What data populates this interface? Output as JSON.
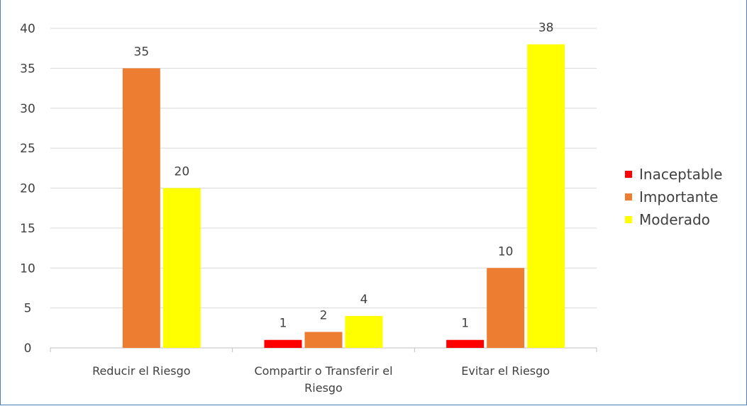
{
  "chart_data": {
    "type": "bar",
    "title": "",
    "categories": [
      "Reducir el Riesgo",
      "Compartir o Transferir el Riesgo",
      "Evitar el Riesgo"
    ],
    "category_label_lines": [
      [
        "Reducir el Riesgo"
      ],
      [
        "Compartir o Transferir el",
        "Riesgo"
      ],
      [
        "Evitar el Riesgo"
      ]
    ],
    "series": [
      {
        "name": "Inaceptable",
        "color": "#ff0000",
        "values": [
          null,
          1,
          1
        ]
      },
      {
        "name": "Importante",
        "color": "#ed7d31",
        "values": [
          35,
          2,
          10
        ]
      },
      {
        "name": "Moderado",
        "color": "#ffff00",
        "values": [
          20,
          4,
          38
        ]
      }
    ],
    "ylim": [
      0,
      40
    ],
    "yticks": [
      0,
      5,
      10,
      15,
      20,
      25,
      30,
      35,
      40
    ],
    "grid": true,
    "legend_position": "right"
  }
}
